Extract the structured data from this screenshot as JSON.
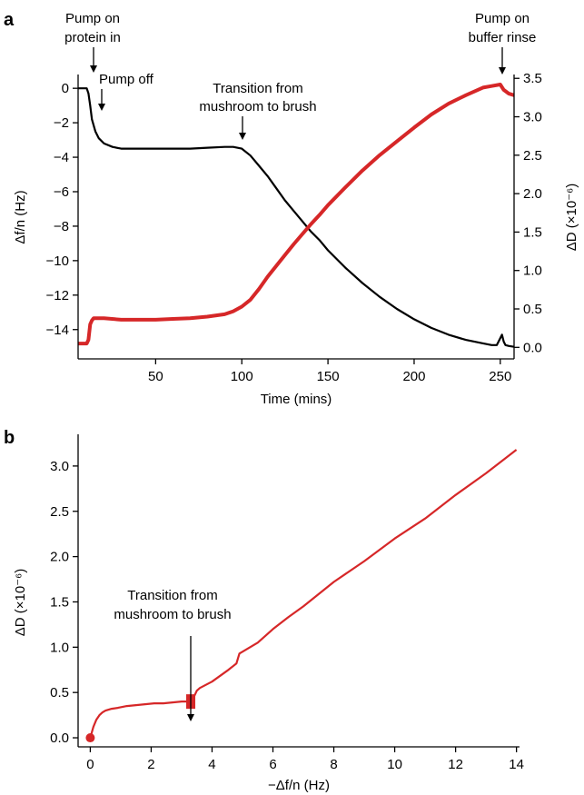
{
  "chart_data": [
    {
      "panel": "a",
      "type": "line",
      "xlabel": "Time (mins)",
      "ylabel_left": "Δf/n (Hz)",
      "ylabel_right": "ΔD (×10⁻⁶)",
      "xlim": [
        5,
        258
      ],
      "ylim_left": [
        -15.7,
        0.8
      ],
      "ylim_right": [
        -0.15,
        3.55
      ],
      "x_ticks": [
        50,
        100,
        150,
        200,
        250
      ],
      "y_ticks_left": [
        0,
        -2,
        -4,
        -6,
        -8,
        -10,
        -12,
        -14
      ],
      "y_ticks_right": [
        0.0,
        0.5,
        1.0,
        1.5,
        2.0,
        2.5,
        3.0,
        3.5
      ],
      "colors": {
        "frequency": "#000000",
        "dissipation": "#d62728"
      },
      "series": [
        {
          "axis": "left",
          "color": "#000000",
          "x": [
            5,
            10,
            11,
            12,
            13,
            15,
            17,
            20,
            25,
            30,
            40,
            50,
            60,
            70,
            80,
            90,
            95,
            100,
            105,
            110,
            115,
            120,
            125,
            130,
            135,
            140,
            145,
            150,
            160,
            170,
            180,
            190,
            200,
            210,
            220,
            230,
            240,
            245,
            248,
            250,
            251,
            252,
            253,
            255,
            258
          ],
          "y": [
            0.0,
            0.0,
            -0.3,
            -1.0,
            -1.8,
            -2.5,
            -2.9,
            -3.2,
            -3.4,
            -3.5,
            -3.5,
            -3.5,
            -3.5,
            -3.5,
            -3.45,
            -3.4,
            -3.4,
            -3.5,
            -3.9,
            -4.5,
            -5.1,
            -5.8,
            -6.5,
            -7.1,
            -7.7,
            -8.3,
            -8.8,
            -9.4,
            -10.4,
            -11.3,
            -12.1,
            -12.8,
            -13.4,
            -13.9,
            -14.3,
            -14.6,
            -14.8,
            -14.9,
            -14.9,
            -14.5,
            -14.3,
            -14.7,
            -14.9,
            -14.95,
            -15.0
          ]
        },
        {
          "axis": "right",
          "color": "#d62728",
          "x": [
            5,
            10,
            11,
            12,
            13,
            14,
            16,
            20,
            30,
            40,
            50,
            60,
            70,
            80,
            90,
            95,
            100,
            105,
            110,
            115,
            120,
            125,
            130,
            135,
            140,
            145,
            150,
            160,
            170,
            180,
            190,
            200,
            210,
            220,
            230,
            240,
            245,
            250,
            252,
            255,
            258
          ],
          "y": [
            0.05,
            0.05,
            0.1,
            0.3,
            0.35,
            0.38,
            0.38,
            0.38,
            0.36,
            0.36,
            0.36,
            0.37,
            0.38,
            0.4,
            0.43,
            0.47,
            0.53,
            0.62,
            0.76,
            0.92,
            1.06,
            1.2,
            1.34,
            1.47,
            1.6,
            1.72,
            1.85,
            2.08,
            2.3,
            2.5,
            2.68,
            2.86,
            3.03,
            3.17,
            3.28,
            3.38,
            3.4,
            3.42,
            3.35,
            3.3,
            3.28
          ]
        }
      ]
    },
    {
      "panel": "b",
      "type": "scatter",
      "xlabel": "−Δf/n (Hz)",
      "ylabel": "ΔD (×10⁻⁶)",
      "xlim": [
        -0.4,
        14.1
      ],
      "ylim": [
        -0.1,
        3.35
      ],
      "x_ticks": [
        0,
        2,
        4,
        6,
        8,
        10,
        12,
        14
      ],
      "y_ticks": [
        0.0,
        0.5,
        1.0,
        1.5,
        2.0,
        2.5,
        3.0
      ],
      "color": "#d62728",
      "x": [
        0.0,
        0.1,
        0.2,
        0.3,
        0.4,
        0.5,
        0.7,
        0.9,
        1.2,
        1.5,
        1.8,
        2.1,
        2.4,
        2.7,
        3.0,
        3.3,
        3.4,
        3.5,
        3.6,
        4.0,
        4.5,
        4.8,
        4.9,
        5.5,
        6.0,
        6.5,
        7.0,
        8.0,
        9.0,
        10.0,
        11.0,
        12.0,
        13.0,
        14.0
      ],
      "y": [
        0.0,
        0.12,
        0.2,
        0.25,
        0.28,
        0.3,
        0.32,
        0.33,
        0.35,
        0.36,
        0.37,
        0.38,
        0.38,
        0.39,
        0.4,
        0.4,
        0.45,
        0.52,
        0.55,
        0.62,
        0.74,
        0.82,
        0.93,
        1.05,
        1.2,
        1.33,
        1.45,
        1.72,
        1.95,
        2.2,
        2.42,
        2.68,
        2.92,
        3.18
      ]
    }
  ],
  "panel_a": {
    "letter": "a",
    "x_tick_labels": [
      "50",
      "100",
      "150",
      "200",
      "250"
    ],
    "y_left_tick_labels": [
      "0",
      "−2",
      "−4",
      "−6",
      "−8",
      "−10",
      "−12",
      "−14"
    ],
    "y_right_tick_labels": [
      "0.0",
      "0.5",
      "1.0",
      "1.5",
      "2.0",
      "2.5",
      "3.0",
      "3.5"
    ],
    "xlabel": "Time (mins)",
    "ylabel_left": "Δf/n (Hz)",
    "ylabel_right": "ΔD (×10⁻⁶)",
    "annotations": {
      "pump_on_1": "Pump on",
      "pump_on_2": "protein in",
      "pump_off": "Pump off",
      "transition_1": "Transition from",
      "transition_2": "mushroom to brush",
      "rinse_1": "Pump on",
      "rinse_2": "buffer rinse"
    }
  },
  "panel_b": {
    "letter": "b",
    "x_tick_labels": [
      "0",
      "2",
      "4",
      "6",
      "8",
      "10",
      "12",
      "14"
    ],
    "y_tick_labels": [
      "0.0",
      "0.5",
      "1.0",
      "1.5",
      "2.0",
      "2.5",
      "3.0"
    ],
    "xlabel": "−Δf/n (Hz)",
    "ylabel": "ΔD (×10⁻⁶)",
    "annotations": {
      "transition_1": "Transition from",
      "transition_2": "mushroom to brush"
    }
  }
}
